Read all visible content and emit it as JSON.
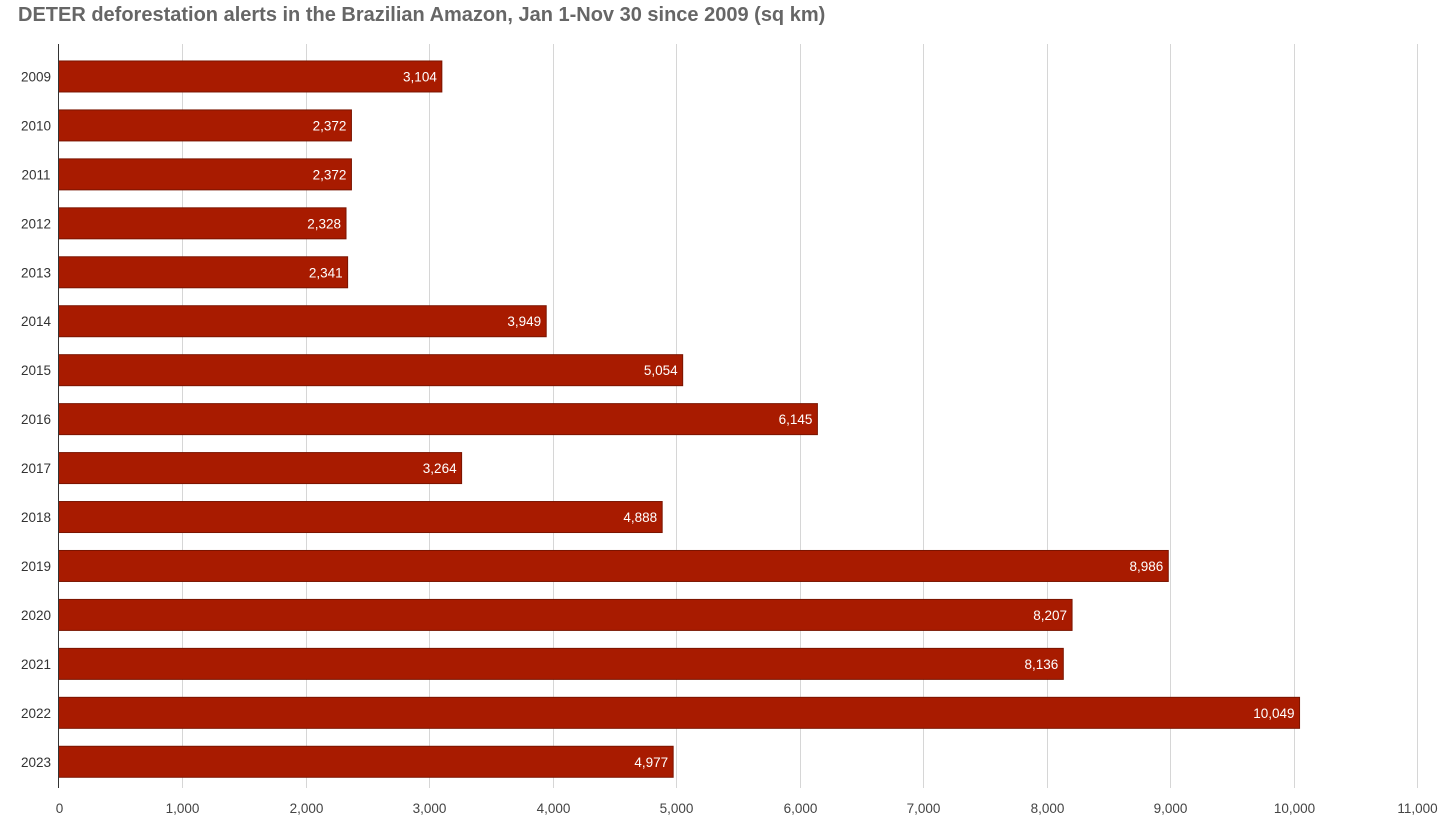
{
  "chart_data": {
    "type": "bar",
    "orientation": "horizontal",
    "title": "DETER deforestation alerts in the Brazilian Amazon, Jan 1-Nov 30 since 2009 (sq km)",
    "xlabel": "",
    "ylabel": "",
    "categories": [
      "2009",
      "2010",
      "2011",
      "2012",
      "2013",
      "2014",
      "2015",
      "2016",
      "2017",
      "2018",
      "2019",
      "2020",
      "2021",
      "2022",
      "2023"
    ],
    "values": [
      3104,
      2372,
      2372,
      2328,
      2341,
      3949,
      5054,
      6145,
      3264,
      4888,
      8986,
      8207,
      8136,
      10049,
      4977
    ],
    "data_labels": [
      "3,104",
      "2,372",
      "2,372",
      "2,328",
      "2,341",
      "3,949",
      "5,054",
      "6,145",
      "3,264",
      "4,888",
      "8,986",
      "8,207",
      "8,136",
      "10,049",
      "4,977"
    ],
    "xlim": [
      0,
      11000
    ],
    "xticks": [
      0,
      1000,
      2000,
      3000,
      4000,
      5000,
      6000,
      7000,
      8000,
      9000,
      10000,
      11000
    ],
    "xtick_labels": [
      "0",
      "1,000",
      "2,000",
      "3,000",
      "4,000",
      "5,000",
      "6,000",
      "7,000",
      "8,000",
      "9,000",
      "10,000",
      "11,000"
    ],
    "grid": "vertical",
    "legend": "none",
    "bar_color": "#a81b00",
    "bar_border_color": "#7a1400"
  }
}
